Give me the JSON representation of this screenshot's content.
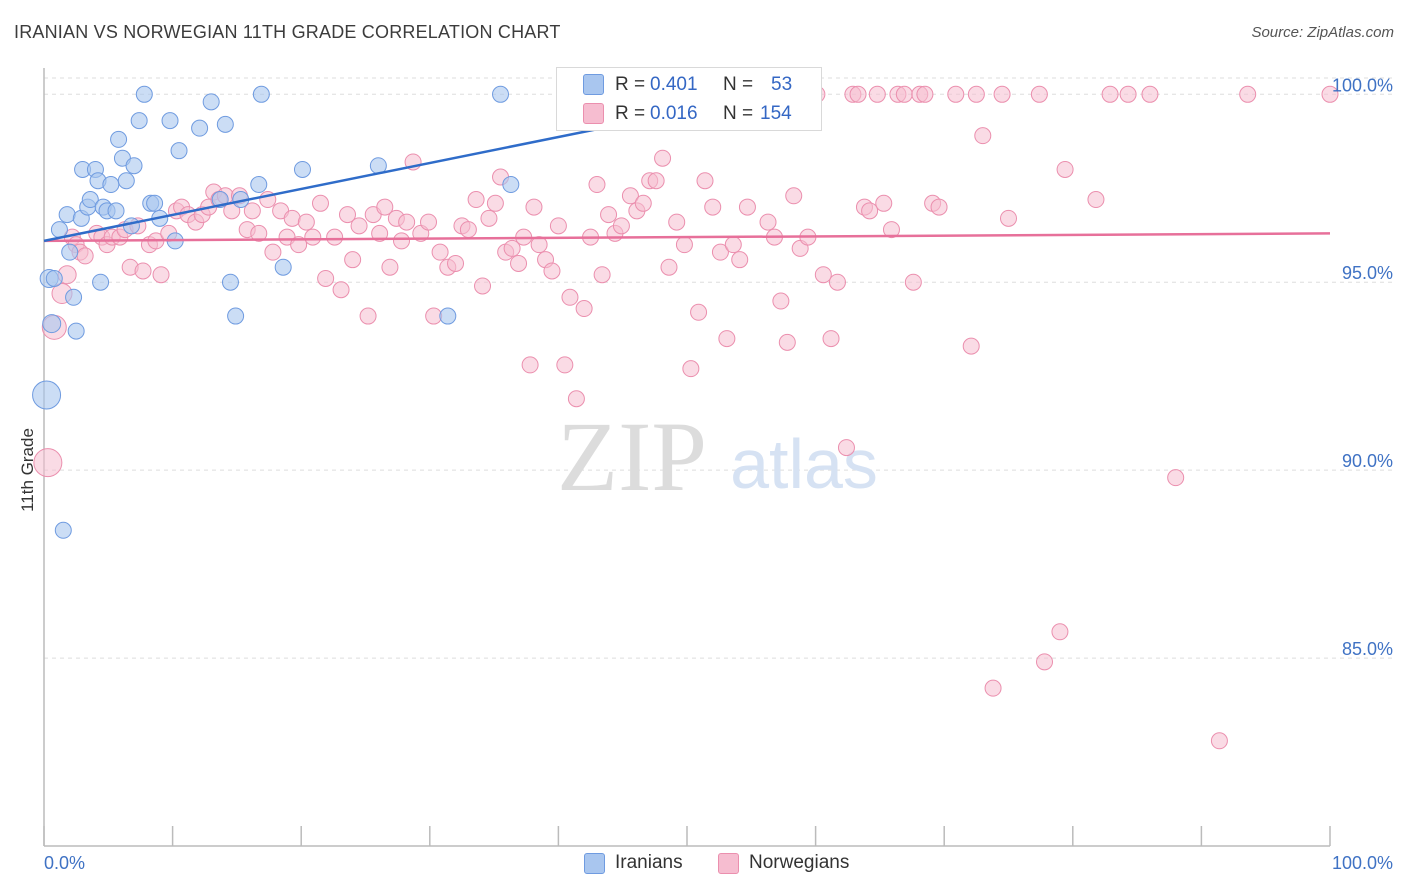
{
  "title": "IRANIAN VS NORWEGIAN 11TH GRADE CORRELATION CHART",
  "source": "Source: ZipAtlas.com",
  "watermark": {
    "zip": "ZIP",
    "atlas": "atlas"
  },
  "colors": {
    "iranians_fill": "#a9c6ef",
    "iranians_stroke": "#6f9be0",
    "iranians_line": "#2f6cc9",
    "norwegians_fill": "#f6bdd0",
    "norwegians_stroke": "#eb8fae",
    "norwegians_line": "#e7709a",
    "axis_text": "#3f72c4",
    "grid": "#dddddd"
  },
  "stats": {
    "iranians": {
      "r_label": "R =",
      "r_value": "0.401",
      "n_label": "N =",
      "n_value": "53"
    },
    "norwegians": {
      "r_label": "R =",
      "r_value": "0.016",
      "n_label": "N =",
      "n_value": "154"
    }
  },
  "legend": {
    "iranians": "Iranians",
    "norwegians": "Norwegians"
  },
  "chart_data": {
    "type": "scatter",
    "title": "IRANIAN VS NORWEGIAN 11TH GRADE CORRELATION CHART",
    "xlabel": "",
    "ylabel": "11th Grade",
    "xlim": [
      0,
      100
    ],
    "ylim": [
      80.0,
      100.7
    ],
    "x_tick_labels": [
      "0.0%",
      "100.0%"
    ],
    "y_ticks": [
      85,
      90,
      95,
      100
    ],
    "y_tick_labels": [
      "85.0%",
      "90.0%",
      "95.0%",
      "100.0%"
    ],
    "grid": true,
    "legend_position": "bottom-center",
    "series": [
      {
        "name": "Iranians",
        "r": 0.401,
        "n": 53,
        "trend": {
          "x": [
            0,
            55
          ],
          "y": [
            96.1,
            99.9
          ]
        },
        "points": [
          [
            0.2,
            92.0,
            14
          ],
          [
            0.4,
            95.1,
            9
          ],
          [
            0.6,
            93.9,
            9
          ],
          [
            0.8,
            95.1,
            8
          ],
          [
            1.2,
            96.4,
            8
          ],
          [
            1.5,
            88.4,
            8
          ],
          [
            1.8,
            96.8,
            8
          ],
          [
            2.0,
            95.8,
            8
          ],
          [
            2.3,
            94.6,
            8
          ],
          [
            2.5,
            93.7,
            8
          ],
          [
            2.9,
            96.7,
            8
          ],
          [
            3.0,
            98.0,
            8
          ],
          [
            3.4,
            97.0,
            8
          ],
          [
            3.6,
            97.2,
            8
          ],
          [
            4.0,
            98.0,
            8
          ],
          [
            4.2,
            97.7,
            8
          ],
          [
            4.4,
            95.0,
            8
          ],
          [
            4.6,
            97.0,
            8
          ],
          [
            4.9,
            96.9,
            8
          ],
          [
            5.2,
            97.6,
            8
          ],
          [
            5.6,
            96.9,
            8
          ],
          [
            5.8,
            98.8,
            8
          ],
          [
            6.1,
            98.3,
            8
          ],
          [
            6.4,
            97.7,
            8
          ],
          [
            6.8,
            96.5,
            8
          ],
          [
            7.0,
            98.1,
            8
          ],
          [
            7.4,
            99.3,
            8
          ],
          [
            7.8,
            100.0,
            8
          ],
          [
            8.3,
            97.1,
            8
          ],
          [
            8.6,
            97.1,
            8
          ],
          [
            9.0,
            96.7,
            8
          ],
          [
            9.8,
            99.3,
            8
          ],
          [
            10.2,
            96.1,
            8
          ],
          [
            10.5,
            98.5,
            8
          ],
          [
            12.1,
            99.1,
            8
          ],
          [
            13.0,
            99.8,
            8
          ],
          [
            13.7,
            97.2,
            8
          ],
          [
            14.1,
            99.2,
            8
          ],
          [
            14.5,
            95.0,
            8
          ],
          [
            14.9,
            94.1,
            8
          ],
          [
            15.3,
            97.2,
            8
          ],
          [
            16.7,
            97.6,
            8
          ],
          [
            16.9,
            100.0,
            8
          ],
          [
            18.6,
            95.4,
            8
          ],
          [
            20.1,
            98.0,
            8
          ],
          [
            26.0,
            98.1,
            8
          ],
          [
            31.4,
            94.1,
            8
          ],
          [
            35.5,
            100.0,
            8
          ],
          [
            36.3,
            97.6,
            8
          ],
          [
            52.2,
            100.0,
            8
          ]
        ]
      },
      {
        "name": "Norwegians",
        "r": 0.016,
        "n": 154,
        "trend": {
          "x": [
            0,
            100
          ],
          "y": [
            96.1,
            96.3
          ]
        },
        "points": [
          [
            0.3,
            90.2,
            14
          ],
          [
            0.8,
            93.8,
            12
          ],
          [
            1.4,
            94.7,
            10
          ],
          [
            1.8,
            95.2,
            9
          ],
          [
            2.2,
            96.2,
            8
          ],
          [
            2.5,
            96.0,
            8
          ],
          [
            2.8,
            95.8,
            8
          ],
          [
            3.2,
            95.7,
            8
          ],
          [
            4.1,
            96.3,
            8
          ],
          [
            4.5,
            96.2,
            8
          ],
          [
            4.9,
            96.0,
            8
          ],
          [
            5.3,
            96.2,
            8
          ],
          [
            5.9,
            96.2,
            8
          ],
          [
            6.3,
            96.4,
            8
          ],
          [
            6.7,
            95.4,
            8
          ],
          [
            7.3,
            96.5,
            8
          ],
          [
            7.7,
            95.3,
            8
          ],
          [
            8.2,
            96.0,
            8
          ],
          [
            8.7,
            96.1,
            8
          ],
          [
            9.1,
            95.2,
            8
          ],
          [
            9.7,
            96.3,
            8
          ],
          [
            10.3,
            96.9,
            8
          ],
          [
            10.7,
            97.0,
            8
          ],
          [
            11.2,
            96.8,
            8
          ],
          [
            11.8,
            96.6,
            8
          ],
          [
            12.3,
            96.8,
            8
          ],
          [
            12.8,
            97.0,
            8
          ],
          [
            13.2,
            97.4,
            8
          ],
          [
            13.6,
            97.2,
            8
          ],
          [
            14.1,
            97.3,
            8
          ],
          [
            14.6,
            96.9,
            8
          ],
          [
            15.2,
            97.3,
            8
          ],
          [
            15.8,
            96.4,
            8
          ],
          [
            16.2,
            96.9,
            8
          ],
          [
            16.7,
            96.3,
            8
          ],
          [
            17.4,
            97.2,
            8
          ],
          [
            17.8,
            95.8,
            8
          ],
          [
            18.4,
            96.9,
            8
          ],
          [
            18.9,
            96.2,
            8
          ],
          [
            19.3,
            96.7,
            8
          ],
          [
            19.8,
            96.0,
            8
          ],
          [
            20.4,
            96.6,
            8
          ],
          [
            20.9,
            96.2,
            8
          ],
          [
            21.5,
            97.1,
            8
          ],
          [
            21.9,
            95.1,
            8
          ],
          [
            22.6,
            96.2,
            8
          ],
          [
            23.1,
            94.8,
            8
          ],
          [
            23.6,
            96.8,
            8
          ],
          [
            24.0,
            95.6,
            8
          ],
          [
            24.5,
            96.5,
            8
          ],
          [
            25.2,
            94.1,
            8
          ],
          [
            25.6,
            96.8,
            8
          ],
          [
            26.1,
            96.3,
            8
          ],
          [
            26.5,
            97.0,
            8
          ],
          [
            26.9,
            95.4,
            8
          ],
          [
            27.4,
            96.7,
            8
          ],
          [
            27.8,
            96.1,
            8
          ],
          [
            28.2,
            96.6,
            8
          ],
          [
            28.7,
            98.2,
            8
          ],
          [
            29.3,
            96.3,
            8
          ],
          [
            29.9,
            96.6,
            8
          ],
          [
            30.3,
            94.1,
            8
          ],
          [
            30.8,
            95.8,
            8
          ],
          [
            31.4,
            95.4,
            8
          ],
          [
            32.0,
            95.5,
            8
          ],
          [
            32.5,
            96.5,
            8
          ],
          [
            33.0,
            96.4,
            8
          ],
          [
            33.6,
            97.2,
            8
          ],
          [
            34.1,
            94.9,
            8
          ],
          [
            34.6,
            96.7,
            8
          ],
          [
            35.1,
            97.1,
            8
          ],
          [
            35.5,
            97.8,
            8
          ],
          [
            35.9,
            95.8,
            8
          ],
          [
            36.4,
            95.9,
            8
          ],
          [
            36.9,
            95.5,
            8
          ],
          [
            37.3,
            96.2,
            8
          ],
          [
            37.8,
            92.8,
            8
          ],
          [
            38.1,
            97.0,
            8
          ],
          [
            38.5,
            96.0,
            8
          ],
          [
            39.0,
            95.6,
            8
          ],
          [
            39.5,
            95.3,
            8
          ],
          [
            40.0,
            96.5,
            8
          ],
          [
            40.5,
            92.8,
            8
          ],
          [
            40.9,
            94.6,
            8
          ],
          [
            41.4,
            91.9,
            8
          ],
          [
            42.0,
            94.3,
            8
          ],
          [
            42.5,
            96.2,
            8
          ],
          [
            43.0,
            97.6,
            8
          ],
          [
            43.4,
            95.2,
            8
          ],
          [
            43.9,
            96.8,
            8
          ],
          [
            44.4,
            96.3,
            8
          ],
          [
            44.9,
            96.5,
            8
          ],
          [
            45.6,
            97.3,
            8
          ],
          [
            46.1,
            96.9,
            8
          ],
          [
            46.6,
            97.1,
            8
          ],
          [
            47.1,
            97.7,
            8
          ],
          [
            47.6,
            97.7,
            8
          ],
          [
            48.1,
            98.3,
            8
          ],
          [
            48.6,
            95.4,
            8
          ],
          [
            49.2,
            96.6,
            8
          ],
          [
            49.8,
            96.0,
            8
          ],
          [
            50.3,
            92.7,
            8
          ],
          [
            50.9,
            94.2,
            8
          ],
          [
            51.4,
            97.7,
            8
          ],
          [
            52.0,
            97.0,
            8
          ],
          [
            52.6,
            95.8,
            8
          ],
          [
            53.1,
            93.5,
            8
          ],
          [
            53.6,
            96.0,
            8
          ],
          [
            54.1,
            95.6,
            8
          ],
          [
            54.7,
            97.0,
            8
          ],
          [
            55.2,
            100.0,
            8
          ],
          [
            56.3,
            96.6,
            8
          ],
          [
            56.8,
            96.2,
            8
          ],
          [
            57.3,
            94.5,
            8
          ],
          [
            57.8,
            93.4,
            8
          ],
          [
            58.3,
            97.3,
            8
          ],
          [
            58.8,
            95.9,
            8
          ],
          [
            59.4,
            96.2,
            8
          ],
          [
            60.1,
            100.0,
            8
          ],
          [
            60.6,
            95.2,
            8
          ],
          [
            61.2,
            93.5,
            8
          ],
          [
            61.7,
            95.0,
            8
          ],
          [
            62.4,
            90.6,
            8
          ],
          [
            62.9,
            100.0,
            8
          ],
          [
            63.3,
            100.0,
            8
          ],
          [
            63.8,
            97.0,
            8
          ],
          [
            64.2,
            96.9,
            8
          ],
          [
            64.8,
            100.0,
            8
          ],
          [
            65.3,
            97.1,
            8
          ],
          [
            65.9,
            96.4,
            8
          ],
          [
            66.4,
            100.0,
            8
          ],
          [
            66.9,
            100.0,
            8
          ],
          [
            67.6,
            95.0,
            8
          ],
          [
            68.1,
            100.0,
            8
          ],
          [
            68.5,
            100.0,
            8
          ],
          [
            69.1,
            97.1,
            8
          ],
          [
            69.6,
            97.0,
            8
          ],
          [
            70.9,
            100.0,
            8
          ],
          [
            72.1,
            93.3,
            8
          ],
          [
            72.5,
            100.0,
            8
          ],
          [
            73.0,
            98.9,
            8
          ],
          [
            73.8,
            84.2,
            8
          ],
          [
            74.5,
            100.0,
            8
          ],
          [
            75.0,
            96.7,
            8
          ],
          [
            77.4,
            100.0,
            8
          ],
          [
            77.8,
            84.9,
            8
          ],
          [
            79.0,
            85.7,
            8
          ],
          [
            79.4,
            98.0,
            8
          ],
          [
            81.8,
            97.2,
            8
          ],
          [
            82.9,
            100.0,
            8
          ],
          [
            84.3,
            100.0,
            8
          ],
          [
            86.0,
            100.0,
            8
          ],
          [
            88.0,
            89.8,
            8
          ],
          [
            91.4,
            82.8,
            8
          ],
          [
            93.6,
            100.0,
            8
          ],
          [
            100.0,
            100.0,
            8
          ]
        ]
      }
    ]
  }
}
